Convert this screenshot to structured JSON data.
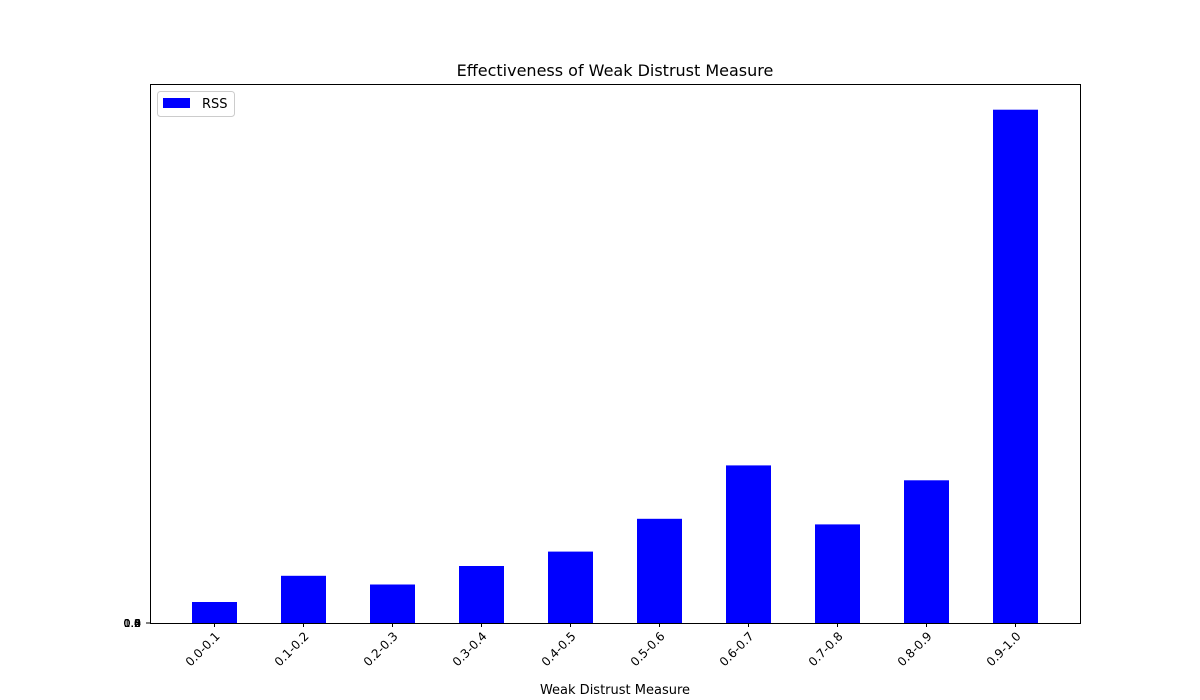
{
  "chart_data": {
    "type": "bar",
    "title": "Effectiveness of Weak Distrust Measure",
    "xlabel": "Weak Distrust Measure",
    "ylabel": "",
    "categories": [
      "0.0-0.1",
      "0.1-0.2",
      "0.2-0.3",
      "0.3-0.4",
      "0.4-0.5",
      "0.5-0.6",
      "0.6-0.7",
      "0.7-0.8",
      "0.8-0.9",
      "0.9-1.0"
    ],
    "series": [
      {
        "name": "RSS",
        "color": "#0000ff",
        "values": [
          0.041,
          0.092,
          0.075,
          0.111,
          0.139,
          0.203,
          0.307,
          0.192,
          0.278,
          1.0
        ]
      }
    ],
    "ylim": [
      0,
      1.05
    ],
    "y_tick_labels_overlapping": [
      "0.0",
      "0.2",
      "0.4",
      "0.6",
      "0.8",
      "1.0"
    ],
    "legend_position": "top-left",
    "grid": false
  }
}
